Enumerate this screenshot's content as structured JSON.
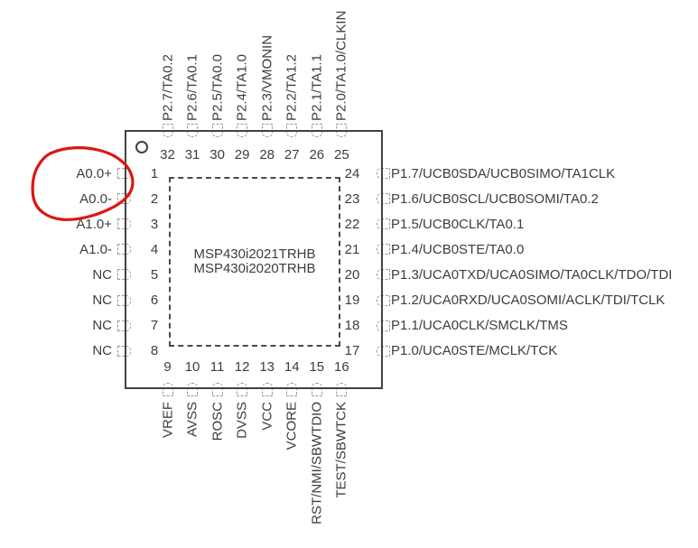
{
  "chip": {
    "title_lines": [
      "MSP430i2021TRHB",
      "MSP430i2020TRHB"
    ],
    "package_type": "32-pin QFN pinout",
    "pin1_marker": "pin1-indicator-circle"
  },
  "pins": {
    "left": [
      {
        "num": "1",
        "label": "A0.0+"
      },
      {
        "num": "2",
        "label": "A0.0-"
      },
      {
        "num": "3",
        "label": "A1.0+"
      },
      {
        "num": "4",
        "label": "A1.0-"
      },
      {
        "num": "5",
        "label": "NC"
      },
      {
        "num": "6",
        "label": "NC"
      },
      {
        "num": "7",
        "label": "NC"
      },
      {
        "num": "8",
        "label": "NC"
      }
    ],
    "right": [
      {
        "num": "24",
        "label": "P1.7/UCB0SDA/UCB0SIMO/TA1CLK"
      },
      {
        "num": "23",
        "label": "P1.6/UCB0SCL/UCB0SOMI/TA0.2"
      },
      {
        "num": "22",
        "label": "P1.5/UCB0CLK/TA0.1"
      },
      {
        "num": "21",
        "label": "P1.4/UCB0STE/TA0.0"
      },
      {
        "num": "20",
        "label": "P1.3/UCA0TXD/UCA0SIMO/TA0CLK/TDO/TDI"
      },
      {
        "num": "19",
        "label": "P1.2/UCA0RXD/UCA0SOMI/ACLK/TDI/TCLK"
      },
      {
        "num": "18",
        "label": "P1.1/UCA0CLK/SMCLK/TMS"
      },
      {
        "num": "17",
        "label": "P1.0/UCA0STE/MCLK/TCK"
      }
    ],
    "top": [
      {
        "num": "32",
        "label": "P2.7/TA0.2"
      },
      {
        "num": "31",
        "label": "P2.6/TA0.1"
      },
      {
        "num": "30",
        "label": "P2.5/TA0.0"
      },
      {
        "num": "29",
        "label": "P2.4/TA1.0"
      },
      {
        "num": "28",
        "label": "P2.3/VMONIN"
      },
      {
        "num": "27",
        "label": "P2.2/TA1.2"
      },
      {
        "num": "26",
        "label": "P2.1/TA1.1"
      },
      {
        "num": "25",
        "label": "P2.0/TA1.0/CLKIN"
      }
    ],
    "bottom": [
      {
        "num": "9",
        "label": "VREF"
      },
      {
        "num": "10",
        "label": "AVSS"
      },
      {
        "num": "11",
        "label": "ROSC"
      },
      {
        "num": "12",
        "label": "DVSS"
      },
      {
        "num": "13",
        "label": "VCC"
      },
      {
        "num": "14",
        "label": "VCORE"
      },
      {
        "num": "15",
        "label": "RST/NMI/SBWTDIO"
      },
      {
        "num": "16",
        "label": "TEST/SBWTCK"
      }
    ]
  },
  "annotation": {
    "type": "hand-drawn-circle",
    "around": "pins 1-2 labels A0.0+ and A0.0-",
    "color": "#dc1712"
  },
  "colors": {
    "background": "#ffffff",
    "line": "#424242",
    "pad_dash": "#989898",
    "text": "#3d3d3d",
    "annotation_red": "#dc1712"
  }
}
